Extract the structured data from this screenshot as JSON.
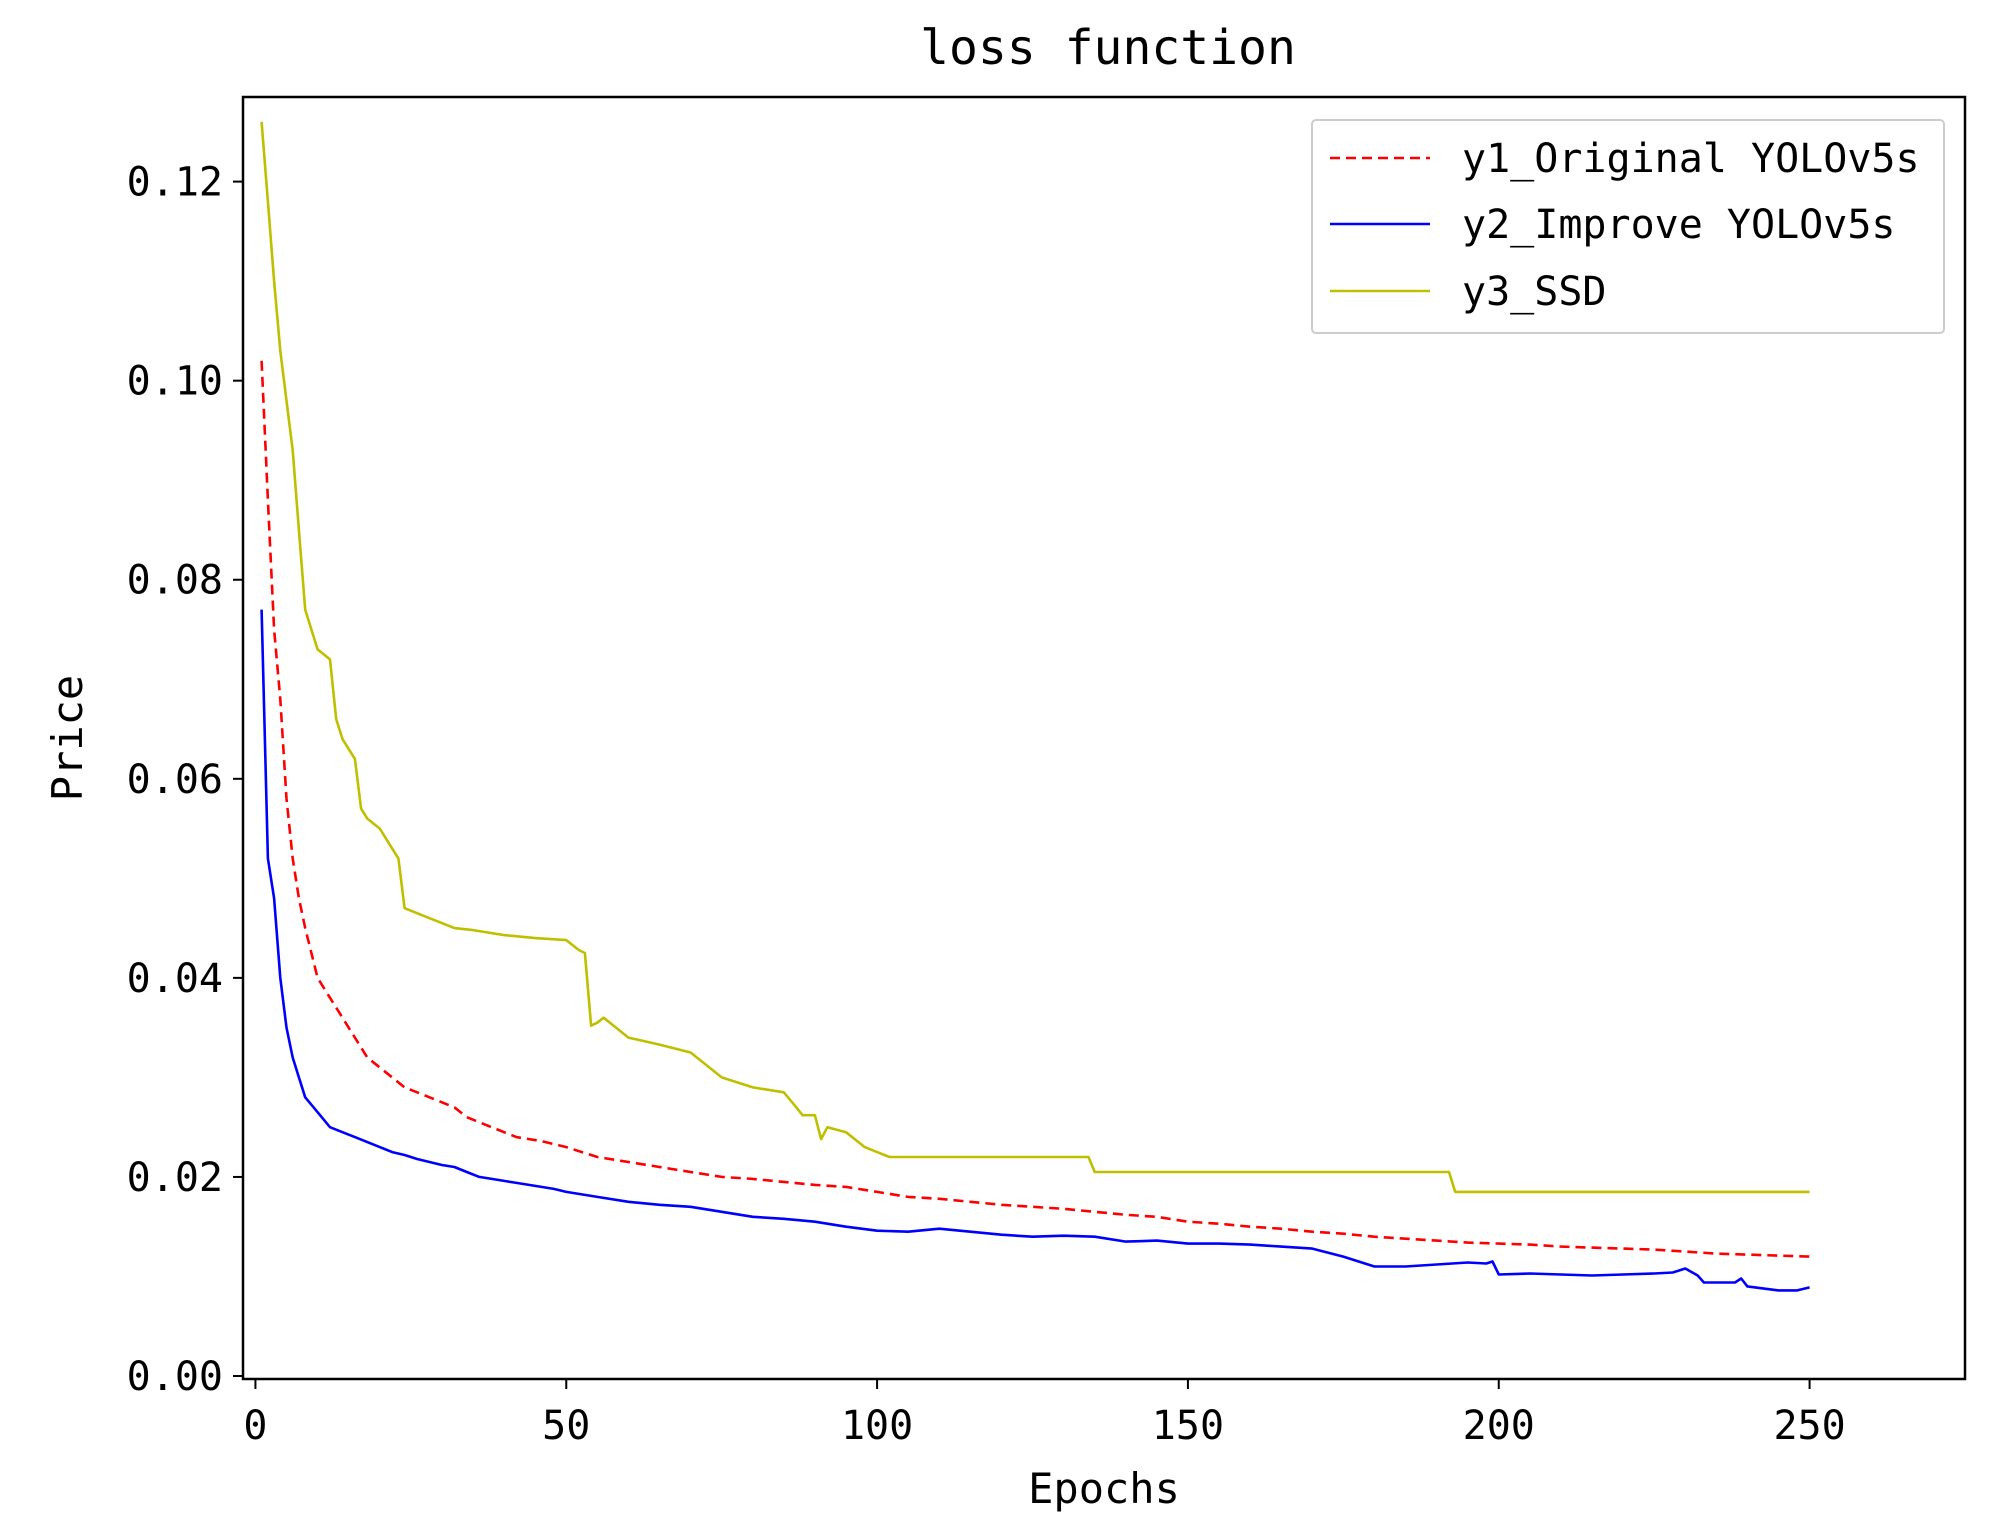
{
  "chart_data": {
    "type": "line",
    "title": "loss function",
    "xlabel": "Epochs",
    "ylabel": "Price",
    "xlim": [
      -2,
      275
    ],
    "ylim": [
      -0.0003,
      0.1285
    ],
    "xticks": [
      0,
      50,
      100,
      150,
      200,
      250
    ],
    "xtick_labels": [
      "0",
      "50",
      "100",
      "150",
      "200",
      "250"
    ],
    "yticks": [
      0.0,
      0.02,
      0.04,
      0.06,
      0.08,
      0.1,
      0.12
    ],
    "ytick_labels": [
      "0.00",
      "0.02",
      "0.04",
      "0.06",
      "0.08",
      "0.10",
      "0.12"
    ],
    "grid": false,
    "legend_position": "top-right",
    "series": [
      {
        "name": "y1_Original YOLOv5s",
        "color": "#ff0000",
        "dash": "dashed",
        "x": [
          1,
          2,
          3,
          4,
          5,
          6,
          7,
          8,
          10,
          12,
          14,
          16,
          18,
          20,
          22,
          24,
          26,
          28,
          30,
          32,
          34,
          36,
          38,
          40,
          42,
          44,
          46,
          48,
          50,
          55,
          60,
          65,
          70,
          75,
          80,
          85,
          90,
          95,
          100,
          105,
          110,
          115,
          120,
          125,
          130,
          135,
          140,
          145,
          150,
          155,
          160,
          165,
          170,
          175,
          180,
          185,
          190,
          195,
          200,
          205,
          210,
          215,
          220,
          225,
          230,
          235,
          240,
          245,
          250
        ],
        "y": [
          0.102,
          0.088,
          0.075,
          0.068,
          0.058,
          0.052,
          0.048,
          0.045,
          0.04,
          0.038,
          0.036,
          0.034,
          0.032,
          0.031,
          0.03,
          0.029,
          0.0285,
          0.028,
          0.0275,
          0.027,
          0.026,
          0.0255,
          0.025,
          0.0245,
          0.024,
          0.0238,
          0.0236,
          0.0233,
          0.023,
          0.022,
          0.0215,
          0.021,
          0.0205,
          0.02,
          0.0198,
          0.0195,
          0.0192,
          0.019,
          0.0185,
          0.018,
          0.0178,
          0.0175,
          0.0172,
          0.017,
          0.0168,
          0.0165,
          0.0162,
          0.016,
          0.0155,
          0.0153,
          0.015,
          0.0148,
          0.0145,
          0.0143,
          0.014,
          0.0138,
          0.0136,
          0.0134,
          0.0133,
          0.0132,
          0.013,
          0.0129,
          0.0128,
          0.0127,
          0.0125,
          0.0123,
          0.0122,
          0.0121,
          0.012
        ]
      },
      {
        "name": "y2_Improve YOLOv5s",
        "color": "#0000ff",
        "dash": "solid",
        "x": [
          1,
          2,
          3,
          4,
          5,
          6,
          7,
          8,
          10,
          12,
          14,
          16,
          18,
          20,
          22,
          24,
          26,
          28,
          30,
          32,
          34,
          36,
          38,
          40,
          42,
          44,
          46,
          48,
          50,
          55,
          60,
          65,
          70,
          75,
          80,
          85,
          90,
          95,
          100,
          105,
          110,
          115,
          120,
          125,
          130,
          135,
          140,
          145,
          150,
          155,
          160,
          165,
          170,
          175,
          180,
          185,
          190,
          195,
          198,
          199,
          200,
          205,
          210,
          215,
          220,
          225,
          228,
          230,
          232,
          233,
          238,
          239,
          240,
          245,
          248,
          250
        ],
        "y": [
          0.077,
          0.052,
          0.048,
          0.04,
          0.035,
          0.032,
          0.03,
          0.028,
          0.0265,
          0.025,
          0.0245,
          0.024,
          0.0235,
          0.023,
          0.0225,
          0.0222,
          0.0218,
          0.0215,
          0.0212,
          0.021,
          0.0205,
          0.02,
          0.0198,
          0.0196,
          0.0194,
          0.0192,
          0.019,
          0.0188,
          0.0185,
          0.018,
          0.0175,
          0.0172,
          0.017,
          0.0165,
          0.016,
          0.0158,
          0.0155,
          0.015,
          0.0146,
          0.0145,
          0.0148,
          0.0145,
          0.0142,
          0.014,
          0.0141,
          0.014,
          0.0135,
          0.0136,
          0.0133,
          0.0133,
          0.0132,
          0.013,
          0.0128,
          0.012,
          0.011,
          0.011,
          0.0112,
          0.0114,
          0.0113,
          0.0115,
          0.0102,
          0.0103,
          0.0102,
          0.0101,
          0.0102,
          0.0103,
          0.0104,
          0.0108,
          0.0101,
          0.0094,
          0.0094,
          0.0098,
          0.009,
          0.0086,
          0.0086,
          0.0089
        ]
      },
      {
        "name": "y3_SSD",
        "color": "#bfbf00",
        "dash": "solid",
        "x": [
          1,
          2,
          3,
          4,
          5,
          6,
          7,
          8,
          10,
          12,
          13,
          14,
          16,
          17,
          18,
          20,
          22,
          23,
          24,
          26,
          28,
          30,
          32,
          35,
          38,
          40,
          45,
          50,
          52,
          53,
          54,
          55,
          56,
          58,
          60,
          65,
          70,
          75,
          80,
          85,
          87,
          88,
          90,
          91,
          92,
          95,
          98,
          100,
          102,
          105,
          110,
          115,
          120,
          125,
          130,
          134,
          135,
          140,
          150,
          160,
          170,
          180,
          190,
          192,
          193,
          200,
          210,
          220,
          230,
          240,
          250
        ],
        "y": [
          0.126,
          0.118,
          0.11,
          0.103,
          0.098,
          0.093,
          0.085,
          0.077,
          0.073,
          0.072,
          0.066,
          0.064,
          0.062,
          0.057,
          0.056,
          0.055,
          0.053,
          0.052,
          0.047,
          0.0465,
          0.046,
          0.0455,
          0.045,
          0.0448,
          0.0445,
          0.0443,
          0.044,
          0.0438,
          0.0428,
          0.0425,
          0.0352,
          0.0355,
          0.036,
          0.035,
          0.034,
          0.0333,
          0.0325,
          0.03,
          0.029,
          0.0285,
          0.027,
          0.0262,
          0.0262,
          0.0238,
          0.025,
          0.0245,
          0.023,
          0.0225,
          0.022,
          0.022,
          0.022,
          0.022,
          0.022,
          0.022,
          0.022,
          0.022,
          0.0205,
          0.0205,
          0.0205,
          0.0205,
          0.0205,
          0.0205,
          0.0205,
          0.0205,
          0.0185,
          0.0185,
          0.0185,
          0.0185,
          0.0185,
          0.0185,
          0.0185
        ]
      }
    ]
  }
}
